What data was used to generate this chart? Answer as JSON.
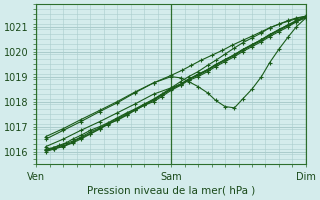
{
  "title": "Pression niveau de la mer( hPa )",
  "bg_color": "#d4ecec",
  "grid_color": "#aacccc",
  "line_color": "#1a5c1a",
  "border_color": "#2d6e2d",
  "xlim": [
    0,
    2.0
  ],
  "ylim": [
    1015.5,
    1021.5
  ],
  "yticks": [
    1016,
    1017,
    1018,
    1019,
    1020,
    1021
  ],
  "xtick_labels": [
    "Ven",
    "Sam",
    "Dim"
  ],
  "xtick_positions": [
    0.0,
    1.0,
    2.0
  ],
  "series": [
    {
      "x": [
        0.07,
        0.12,
        0.17,
        0.22,
        0.27,
        0.33,
        0.4,
        0.47,
        0.53,
        0.6,
        0.67,
        0.73,
        0.8,
        0.87,
        0.93,
        1.0,
        1.07,
        1.13,
        1.2,
        1.27,
        1.33,
        1.4,
        1.47,
        1.53,
        1.6,
        1.67,
        1.73,
        1.8,
        1.87,
        1.93,
        2.0
      ],
      "y": [
        1016.1,
        1016.15,
        1016.25,
        1016.35,
        1016.5,
        1016.65,
        1016.85,
        1017.0,
        1017.15,
        1017.35,
        1017.55,
        1017.7,
        1017.9,
        1018.1,
        1018.3,
        1018.55,
        1018.7,
        1018.9,
        1019.05,
        1019.25,
        1019.45,
        1019.65,
        1019.85,
        1020.05,
        1020.25,
        1020.45,
        1020.65,
        1020.85,
        1021.05,
        1021.2,
        1021.35
      ]
    },
    {
      "x": [
        0.07,
        0.13,
        0.2,
        0.27,
        0.33,
        0.4,
        0.47,
        0.53,
        0.6,
        0.67,
        0.73,
        0.8,
        0.87,
        0.93,
        1.0,
        1.07,
        1.13,
        1.2,
        1.27,
        1.33,
        1.4,
        1.47,
        1.53,
        1.6,
        1.67,
        1.73,
        1.8,
        1.87,
        1.93,
        2.0
      ],
      "y": [
        1016.0,
        1016.1,
        1016.2,
        1016.35,
        1016.5,
        1016.7,
        1016.9,
        1017.1,
        1017.25,
        1017.45,
        1017.65,
        1017.85,
        1018.0,
        1018.2,
        1018.45,
        1018.65,
        1018.85,
        1019.0,
        1019.2,
        1019.4,
        1019.6,
        1019.8,
        1020.0,
        1020.2,
        1020.4,
        1020.6,
        1020.8,
        1021.0,
        1021.2,
        1021.4
      ]
    },
    {
      "x": [
        0.07,
        0.13,
        0.2,
        0.27,
        0.33,
        0.4,
        0.47,
        0.53,
        0.6,
        0.67,
        0.73,
        0.8,
        0.87,
        0.93,
        1.0,
        1.07,
        1.13,
        1.2,
        1.27,
        1.33,
        1.4,
        1.47,
        1.53,
        1.6,
        1.67,
        1.73,
        1.8,
        1.87,
        1.93,
        2.0
      ],
      "y": [
        1016.05,
        1016.12,
        1016.22,
        1016.38,
        1016.55,
        1016.72,
        1016.92,
        1017.08,
        1017.28,
        1017.48,
        1017.65,
        1017.85,
        1018.05,
        1018.25,
        1018.5,
        1018.7,
        1018.9,
        1019.1,
        1019.28,
        1019.48,
        1019.68,
        1019.88,
        1020.08,
        1020.28,
        1020.48,
        1020.68,
        1020.88,
        1021.08,
        1021.22,
        1021.42
      ]
    },
    {
      "x": [
        0.07,
        0.13,
        0.2,
        0.27,
        0.33,
        0.4,
        0.47,
        0.53,
        0.6,
        0.67,
        0.73,
        0.8,
        0.87,
        0.93,
        1.0,
        1.07,
        1.13,
        1.2,
        1.27,
        1.33,
        1.4,
        1.47,
        1.53,
        1.6,
        1.67,
        1.73,
        1.8,
        1.87,
        1.93,
        2.0
      ],
      "y": [
        1016.05,
        1016.15,
        1016.28,
        1016.42,
        1016.58,
        1016.78,
        1016.95,
        1017.12,
        1017.32,
        1017.52,
        1017.68,
        1017.88,
        1018.08,
        1018.28,
        1018.5,
        1018.68,
        1018.88,
        1019.08,
        1019.28,
        1019.48,
        1019.68,
        1019.88,
        1020.08,
        1020.28,
        1020.48,
        1020.68,
        1020.88,
        1021.08,
        1021.25,
        1021.42
      ]
    },
    {
      "x": [
        0.07,
        0.2,
        0.33,
        0.47,
        0.6,
        0.73,
        0.87,
        1.0,
        1.07,
        1.13,
        1.2,
        1.27,
        1.33,
        1.4,
        1.47,
        1.53,
        1.6,
        1.67,
        1.73,
        1.8,
        1.87,
        1.93,
        2.0
      ],
      "y": [
        1016.5,
        1016.85,
        1017.2,
        1017.6,
        1017.95,
        1018.35,
        1018.75,
        1019.0,
        1018.95,
        1018.8,
        1018.6,
        1018.35,
        1018.05,
        1017.8,
        1017.75,
        1018.1,
        1018.5,
        1019.0,
        1019.55,
        1020.1,
        1020.6,
        1021.0,
        1021.35
      ]
    },
    {
      "x": [
        0.07,
        0.2,
        0.33,
        0.47,
        0.6,
        0.73,
        0.87,
        1.0,
        1.07,
        1.13,
        1.2,
        1.27,
        1.33,
        1.4,
        1.47,
        1.53,
        1.6,
        1.67,
        1.73,
        1.8,
        1.87,
        1.93,
        2.0
      ],
      "y": [
        1016.2,
        1016.5,
        1016.85,
        1017.2,
        1017.55,
        1017.9,
        1018.3,
        1018.55,
        1018.8,
        1019.0,
        1019.2,
        1019.45,
        1019.65,
        1019.9,
        1020.15,
        1020.35,
        1020.55,
        1020.75,
        1020.95,
        1021.1,
        1021.25,
        1021.35,
        1021.42
      ]
    },
    {
      "x": [
        0.07,
        0.2,
        0.33,
        0.47,
        0.6,
        0.73,
        0.87,
        1.0,
        1.08,
        1.15,
        1.22,
        1.3,
        1.38,
        1.45,
        1.53,
        1.6,
        1.67,
        1.73,
        1.8,
        1.87,
        1.93,
        2.0
      ],
      "y": [
        1016.6,
        1016.92,
        1017.28,
        1017.65,
        1018.0,
        1018.38,
        1018.75,
        1019.05,
        1019.25,
        1019.45,
        1019.65,
        1019.85,
        1020.05,
        1020.25,
        1020.45,
        1020.62,
        1020.8,
        1020.95,
        1021.1,
        1021.22,
        1021.32,
        1021.42
      ]
    }
  ]
}
